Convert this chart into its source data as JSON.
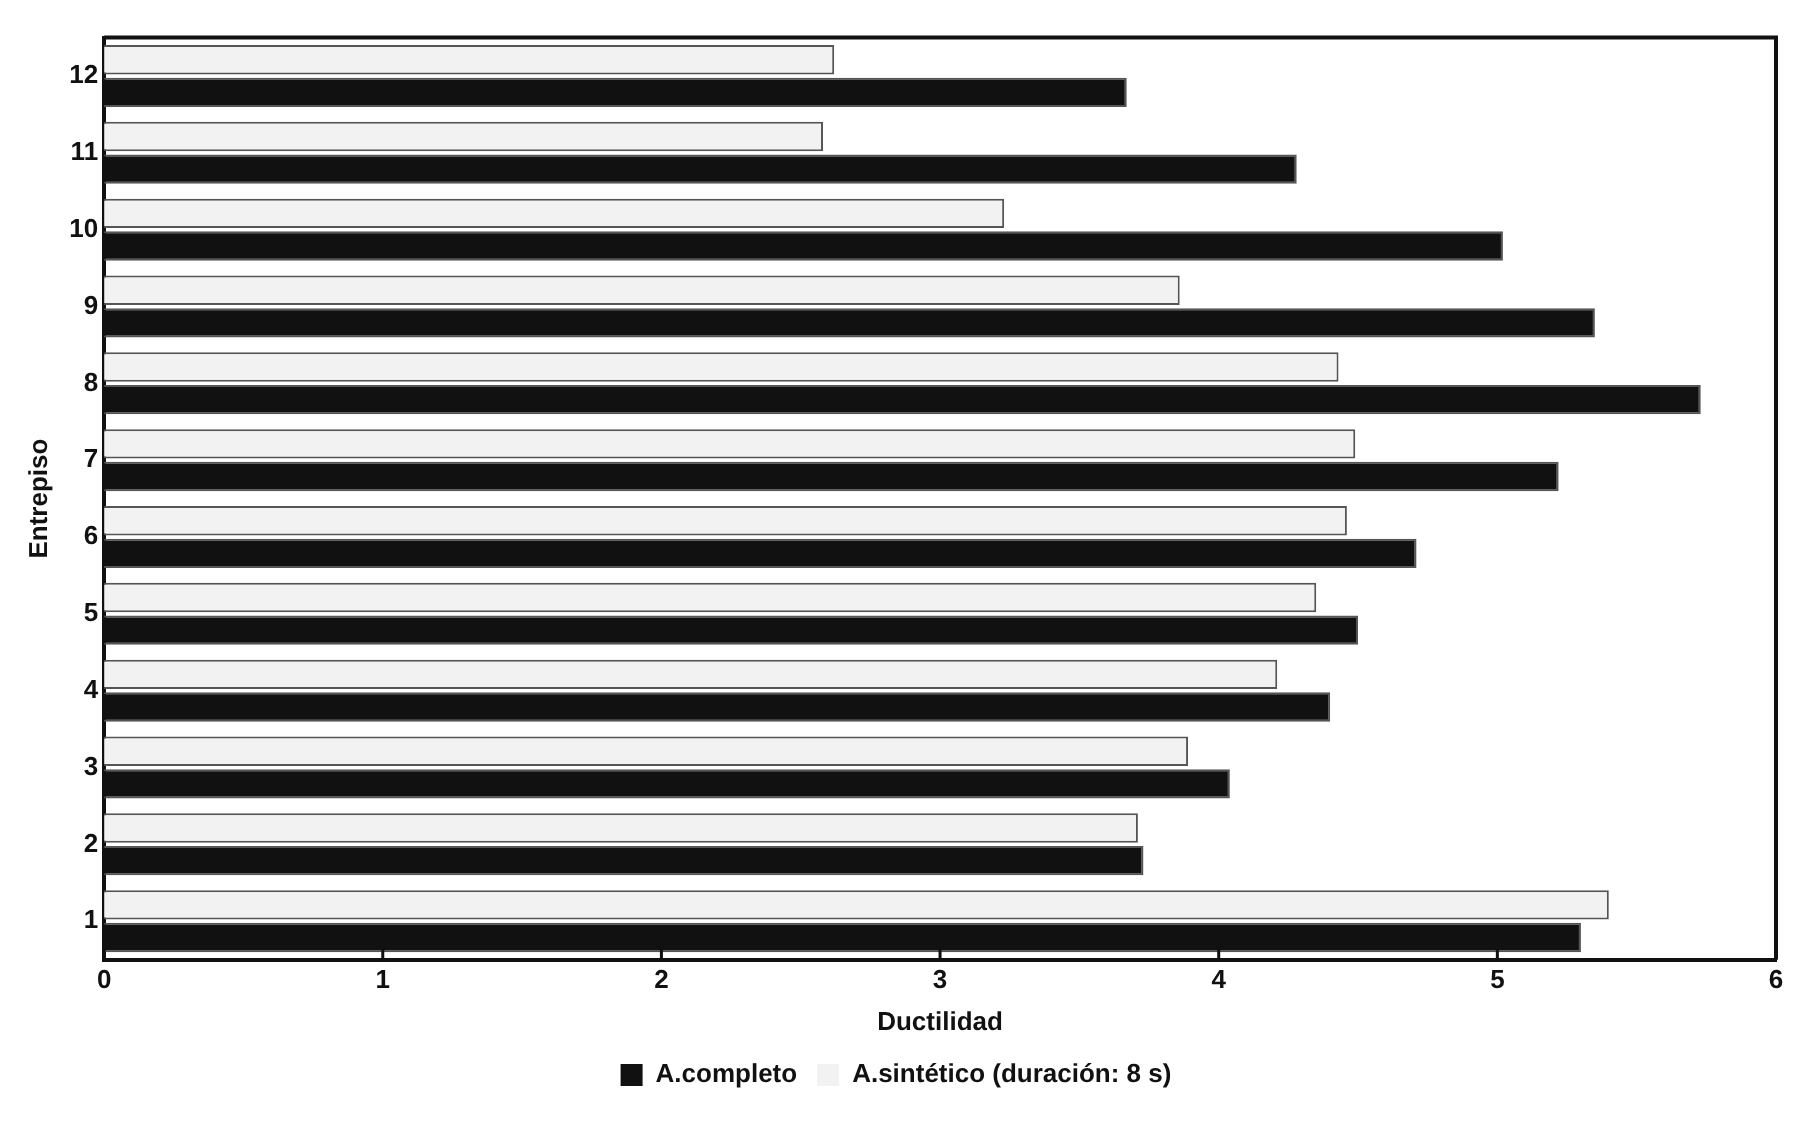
{
  "chart_data": {
    "type": "bar",
    "orientation": "horizontal",
    "xlabel": "Ductilidad",
    "ylabel": "Entrepiso",
    "categories": [
      "12",
      "11",
      "10",
      "9",
      "8",
      "7",
      "6",
      "5",
      "4",
      "3",
      "2",
      "1"
    ],
    "series": [
      {
        "name": "A.sintético (duración: 8 s)",
        "color": "#f2f2f2",
        "values": [
          2.62,
          2.58,
          3.23,
          3.86,
          4.43,
          4.49,
          4.46,
          4.35,
          4.21,
          3.89,
          3.71,
          5.4
        ]
      },
      {
        "name": "A.completo",
        "color": "#111111",
        "values": [
          3.67,
          4.28,
          5.02,
          5.35,
          5.73,
          5.22,
          4.71,
          4.5,
          4.4,
          4.04,
          3.73,
          5.3
        ]
      }
    ],
    "xlim": [
      0,
      6
    ],
    "xticks": [
      0,
      1,
      2,
      3,
      4,
      5,
      6
    ],
    "grid": false,
    "legend": "bottom"
  }
}
